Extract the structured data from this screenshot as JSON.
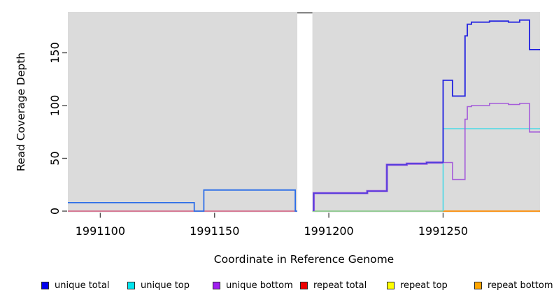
{
  "figure": {
    "background": "#ffffff",
    "panel_background": "#dbdbdb",
    "tick_color": "#4d4d4d",
    "text_color": "#000000"
  },
  "axes": {
    "xlabel": "Coordinate in Reference Genome",
    "ylabel": "Read Coverage Depth",
    "x_tick_labels": [
      "1991100",
      "1991150",
      "1991200",
      "1991250"
    ],
    "y_tick_labels": [
      "0",
      "50",
      "100",
      "150"
    ]
  },
  "chart_data": {
    "type": "line",
    "title": "",
    "xlabel": "Coordinate in Reference Genome",
    "ylabel": "Read Coverage Depth",
    "xlim": [
      1991085.8,
      1991292.4
    ],
    "ylim": [
      0,
      189
    ],
    "x_ticks": [
      1991100,
      1991150,
      1991200,
      1991250
    ],
    "y_ticks": [
      0,
      50,
      100,
      150
    ],
    "grid": false,
    "legend_position": "bottom",
    "gap_region": {
      "x_start": 1991186.2,
      "x_end": 1991192.8,
      "fill": "#ffffff",
      "top_border": "#8a8a8a"
    },
    "series": [
      {
        "name": "repeat-total-baseline-left",
        "color": "#d45b7e",
        "width": 1.6,
        "points": [
          [
            1991085.8,
            0
          ],
          [
            1991186.2,
            0
          ]
        ]
      },
      {
        "name": "baseline-mid-green",
        "color": "#7cc67e",
        "width": 1.6,
        "points": [
          [
            1991192.8,
            0
          ],
          [
            1991250,
            0
          ]
        ]
      },
      {
        "name": "repeat-bottom-baseline-right",
        "color": "#ff8c00",
        "width": 1.8,
        "points": [
          [
            1991250,
            0
          ],
          [
            1991292.4,
            0
          ]
        ]
      },
      {
        "name": "unique-top",
        "color": "#49d9e6",
        "width": 1.6,
        "points": [
          [
            1991250,
            0
          ],
          [
            1991250,
            78
          ],
          [
            1991292.4,
            78
          ]
        ]
      },
      {
        "name": "unique-mid-overlap-fringe",
        "color": "#aa68dd",
        "width": 3.2,
        "points": [
          [
            1991193.4,
            0
          ],
          [
            1991193.4,
            17
          ],
          [
            1991216.8,
            17
          ],
          [
            1991216.8,
            19
          ],
          [
            1991225.4,
            19
          ],
          [
            1991225.4,
            44
          ],
          [
            1991234.1,
            44
          ],
          [
            1991234.1,
            45
          ],
          [
            1991242.8,
            45
          ],
          [
            1991242.8,
            46
          ],
          [
            1991250,
            46
          ]
        ]
      },
      {
        "name": "unique-mid-overlap-core",
        "color": "#4e3cdd",
        "width": 1.7,
        "points": [
          [
            1991193.4,
            0
          ],
          [
            1991193.4,
            17
          ],
          [
            1991216.8,
            17
          ],
          [
            1991216.8,
            19
          ],
          [
            1991225.4,
            19
          ],
          [
            1991225.4,
            44
          ],
          [
            1991234.1,
            44
          ],
          [
            1991234.1,
            45
          ],
          [
            1991242.8,
            45
          ],
          [
            1991242.8,
            46
          ],
          [
            1991250,
            46
          ]
        ]
      },
      {
        "name": "unique-bottom",
        "color": "#a55cd9",
        "width": 1.6,
        "points": [
          [
            1991250,
            46
          ],
          [
            1991254.1,
            46
          ],
          [
            1991254.1,
            30
          ],
          [
            1991259.6,
            30
          ],
          [
            1991259.6,
            87
          ],
          [
            1991260.6,
            87
          ],
          [
            1991260.6,
            99
          ],
          [
            1991262.4,
            99
          ],
          [
            1991262.4,
            100
          ],
          [
            1991270.3,
            100
          ],
          [
            1991270.3,
            102
          ],
          [
            1991278.6,
            102
          ],
          [
            1991278.6,
            101
          ],
          [
            1991283.5,
            101
          ],
          [
            1991283.5,
            102
          ],
          [
            1991287.8,
            102
          ],
          [
            1991287.8,
            75
          ],
          [
            1991292.4,
            75
          ]
        ]
      },
      {
        "name": "unique-total-left",
        "color": "#2e6fe8",
        "width": 1.8,
        "points": [
          [
            1991085.8,
            8
          ],
          [
            1991141.1,
            8
          ],
          [
            1991141.1,
            0
          ],
          [
            1991145.3,
            0
          ],
          [
            1991145.3,
            20
          ],
          [
            1991185.3,
            20
          ],
          [
            1991185.3,
            0
          ],
          [
            1991186.2,
            0
          ]
        ]
      },
      {
        "name": "unique-total-right",
        "color": "#2a2ae0",
        "width": 1.9,
        "points": [
          [
            1991250,
            46
          ],
          [
            1991250,
            124
          ],
          [
            1991254.1,
            124
          ],
          [
            1991254.1,
            109
          ],
          [
            1991259.6,
            109
          ],
          [
            1991259.6,
            166
          ],
          [
            1991260.6,
            166
          ],
          [
            1991260.6,
            177
          ],
          [
            1991262.4,
            177
          ],
          [
            1991262.4,
            179
          ],
          [
            1991270.3,
            179
          ],
          [
            1991270.3,
            180
          ],
          [
            1991278.6,
            180
          ],
          [
            1991278.6,
            179
          ],
          [
            1991283.5,
            179
          ],
          [
            1991283.5,
            181
          ],
          [
            1991287.8,
            181
          ],
          [
            1991287.8,
            153
          ],
          [
            1991292.4,
            153
          ]
        ]
      }
    ]
  },
  "legend": {
    "entries": [
      {
        "label": "unique total",
        "color": "#0000ee"
      },
      {
        "label": "unique top",
        "color": "#00e5ee"
      },
      {
        "label": "unique bottom",
        "color": "#a020f0"
      },
      {
        "label": "repeat total",
        "color": "#ee0000"
      },
      {
        "label": "repeat top",
        "color": "#ffff00"
      },
      {
        "label": "repeat bottom",
        "color": "#ffa500"
      }
    ]
  }
}
